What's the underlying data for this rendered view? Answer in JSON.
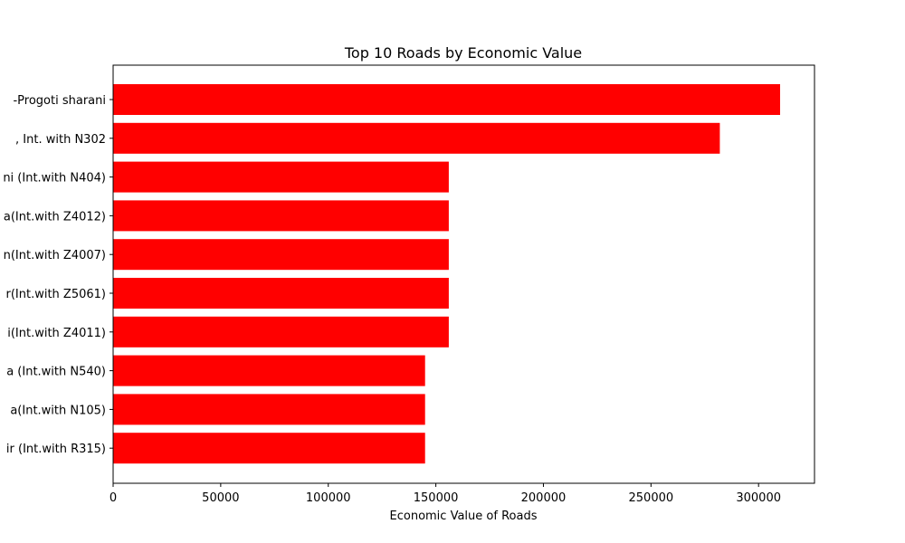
{
  "chart_data": {
    "type": "bar",
    "orientation": "horizontal",
    "title": "Top 10 Roads by Economic Value",
    "xlabel": "Economic Value of Roads",
    "ylabel": "",
    "xlim": [
      0,
      326000
    ],
    "xticks": [
      0,
      50000,
      100000,
      150000,
      200000,
      250000,
      300000
    ],
    "xtick_labels": [
      "0",
      "50000",
      "100000",
      "150000",
      "200000",
      "250000",
      "300000"
    ],
    "bar_color": "#ff0000",
    "grid": false,
    "categories": [
      "-Progoti sharani ",
      ", Int. with N302  ",
      "ni (Int.with N404)",
      "a(Int.with Z4012)",
      "n(Int.with Z4007)",
      "r(Int.with Z5061)",
      "i(Int.with Z4011)",
      "a (Int.with N540)",
      "a(Int.with N105)",
      "ir (Int.with R315)"
    ],
    "values": [
      310000,
      282000,
      156000,
      156000,
      156000,
      156000,
      156000,
      145000,
      145000,
      145000
    ]
  }
}
